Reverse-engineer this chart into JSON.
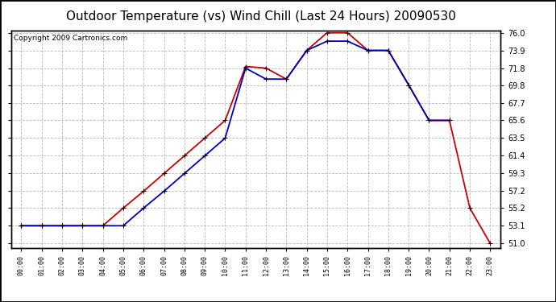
{
  "title": "Outdoor Temperature (vs) Wind Chill (Last 24 Hours) 20090530",
  "copyright": "Copyright 2009 Cartronics.com",
  "hours": [
    "00:00",
    "01:00",
    "02:00",
    "03:00",
    "04:00",
    "05:00",
    "06:00",
    "07:00",
    "08:00",
    "09:00",
    "10:00",
    "11:00",
    "12:00",
    "13:00",
    "14:00",
    "15:00",
    "16:00",
    "17:00",
    "18:00",
    "19:00",
    "20:00",
    "21:00",
    "22:00",
    "23:00"
  ],
  "temp_red": [
    53.1,
    53.1,
    53.1,
    53.1,
    53.1,
    55.2,
    57.2,
    59.3,
    61.4,
    63.5,
    65.6,
    72.0,
    71.8,
    70.5,
    73.9,
    76.0,
    76.0,
    73.9,
    73.9,
    69.8,
    65.6,
    65.6,
    55.2,
    51.0
  ],
  "wind_chill_blue": [
    53.1,
    53.1,
    53.1,
    53.1,
    53.1,
    53.1,
    55.2,
    57.2,
    59.3,
    61.4,
    63.5,
    71.8,
    70.5,
    70.5,
    73.9,
    75.0,
    75.0,
    73.9,
    73.9,
    69.8,
    65.6,
    65.6,
    null,
    null
  ],
  "ylim_min": 50.5,
  "ylim_max": 76.3,
  "yticks": [
    51.0,
    53.1,
    55.2,
    57.2,
    59.3,
    61.4,
    63.5,
    65.6,
    67.7,
    69.8,
    71.8,
    73.9,
    76.0
  ],
  "background_color": "#ffffff",
  "grid_color": "#bbbbbb",
  "red_color": "#cc0000",
  "blue_color": "#0000bb",
  "title_fontsize": 11,
  "copyright_fontsize": 6.5
}
